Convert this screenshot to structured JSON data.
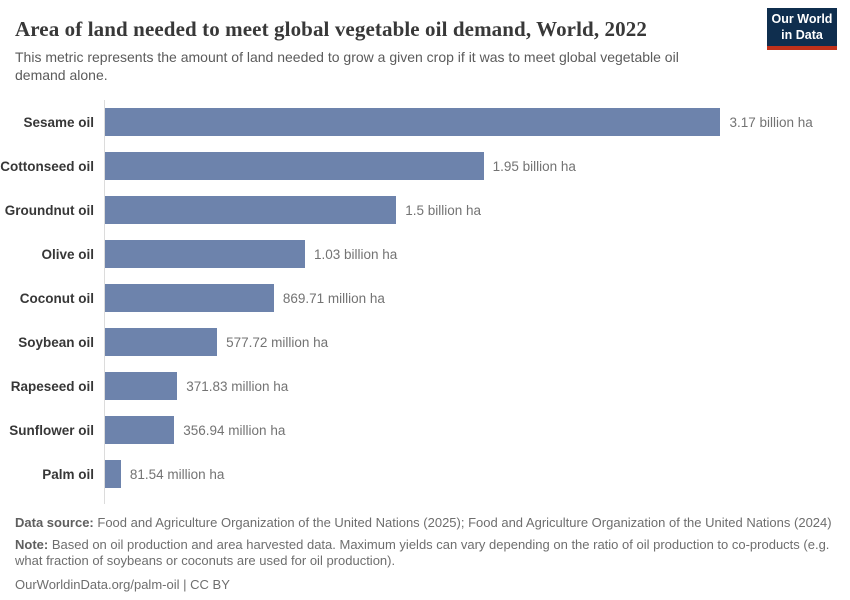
{
  "header": {
    "title": "Area of land needed to meet global vegetable oil demand, World, 2022",
    "subtitle": "This metric represents the amount of land needed to grow a given crop if it was to meet global vegetable oil demand alone.",
    "logo": {
      "line1": "Our World",
      "line2": "in Data",
      "bg_color": "#0f2e4e",
      "accent_color": "#c0311a"
    }
  },
  "chart_data": {
    "type": "bar",
    "orientation": "horizontal",
    "title": "Area of land needed to meet global vegetable oil demand, World, 2022",
    "xlabel": "",
    "ylabel": "",
    "unit": "hectares",
    "grid": false,
    "legend_position": "none",
    "categories": [
      "Sesame oil",
      "Cottonseed oil",
      "Groundnut oil",
      "Olive oil",
      "Coconut oil",
      "Soybean oil",
      "Rapeseed oil",
      "Sunflower oil",
      "Palm oil"
    ],
    "values_billion_ha": [
      3.17,
      1.95,
      1.5,
      1.03,
      0.86971,
      0.57772,
      0.37183,
      0.35694,
      0.08154
    ],
    "value_labels": [
      "3.17 billion ha",
      "1.95 billion ha",
      "1.5 billion ha",
      "1.03 billion ha",
      "869.71 million ha",
      "577.72 million ha",
      "371.83 million ha",
      "356.94 million ha",
      "81.54 million ha"
    ],
    "xlim": [
      0,
      3.76
    ],
    "bar_color": "#6d83ac",
    "axis_line_color": "#dcdcdc"
  },
  "footer": {
    "data_source_label": "Data source:",
    "data_source": "Food and Agriculture Organization of the United Nations (2025); Food and Agriculture Organization of the United Nations (2024)",
    "note_label": "Note:",
    "note": "Based on oil production and area harvested data. Maximum yields can vary depending on the ratio of oil production to co-products (e.g. what fraction of soybeans or coconuts are used for oil production).",
    "url": "OurWorldinData.org/palm-oil",
    "separator": "|",
    "license": "CC BY"
  }
}
